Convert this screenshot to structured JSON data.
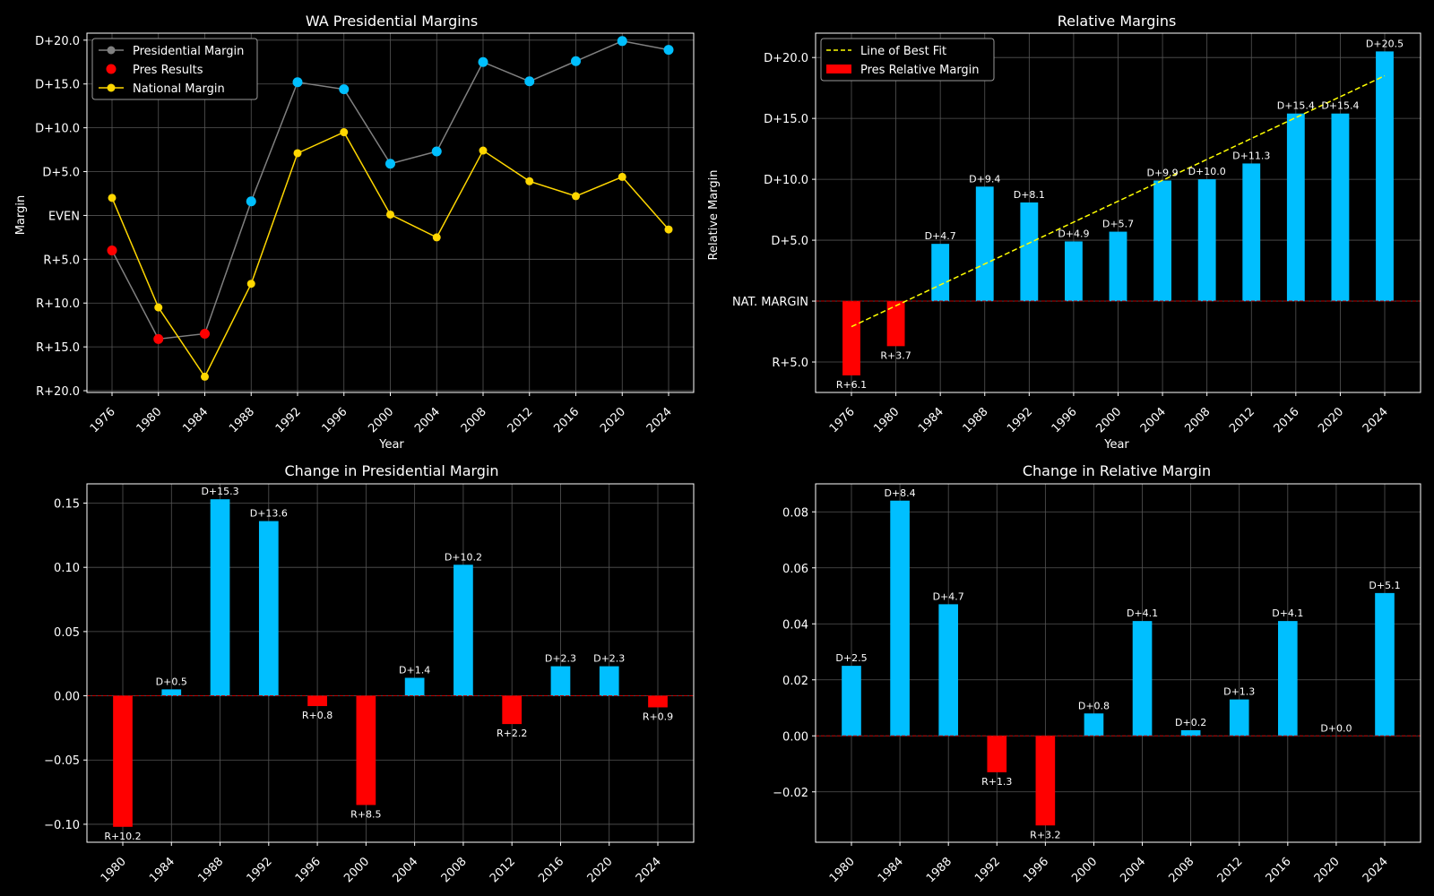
{
  "colors": {
    "background": "#000000",
    "axis": "#ffffff",
    "grid": "#555555",
    "dem": "#00bfff",
    "rep": "#ff0000",
    "line_pres": "#808080",
    "line_nat": "#ffd700",
    "fit": "#ffff00",
    "zero_line": "#c00000"
  },
  "chart_data": [
    {
      "id": "wa-presidential-margins",
      "type": "line",
      "title": "WA Presidential Margins",
      "xlabel": "Year",
      "ylabel": "Margin",
      "x": [
        1976,
        1980,
        1984,
        1988,
        1992,
        1996,
        2000,
        2004,
        2008,
        2012,
        2016,
        2020,
        2024
      ],
      "ylim": [
        -20.2,
        20.8
      ],
      "yticks": [
        {
          "value": 20,
          "label": "D+20.0"
        },
        {
          "value": 15,
          "label": "D+15.0"
        },
        {
          "value": 10,
          "label": "D+10.0"
        },
        {
          "value": 5,
          "label": "D+5.0"
        },
        {
          "value": 0,
          "label": "EVEN"
        },
        {
          "value": -5,
          "label": "R+5.0"
        },
        {
          "value": -10,
          "label": "R+10.0"
        },
        {
          "value": -15,
          "label": "R+15.0"
        },
        {
          "value": -20,
          "label": "R+20.0"
        }
      ],
      "grid": true,
      "legend_position": "top-left",
      "series": [
        {
          "name": "Presidential Margin",
          "values": [
            -4,
            -14.1,
            -13.5,
            1.6,
            15.2,
            14.4,
            5.9,
            7.3,
            17.5,
            15.3,
            17.6,
            19.9,
            18.9
          ]
        },
        {
          "name": "Pres Results",
          "values": [
            -4,
            -14.1,
            -13.5,
            1.6,
            15.2,
            14.4,
            5.9,
            7.3,
            17.5,
            15.3,
            17.6,
            19.9,
            18.9
          ]
        },
        {
          "name": "National Margin",
          "values": [
            2,
            -10.5,
            -18.4,
            -7.8,
            7.1,
            9.5,
            0.1,
            -2.5,
            7.4,
            3.9,
            2.2,
            4.4,
            -1.6
          ]
        }
      ]
    },
    {
      "id": "relative-margins",
      "type": "bar",
      "title": "Relative Margins",
      "xlabel": "Year",
      "ylabel": "Relative Margin",
      "categories": [
        "1976",
        "1980",
        "1984",
        "1988",
        "1992",
        "1996",
        "2000",
        "2004",
        "2008",
        "2012",
        "2016",
        "2020",
        "2024"
      ],
      "values": [
        -6.1,
        -3.7,
        4.7,
        9.4,
        8.1,
        4.9,
        5.7,
        9.9,
        10.0,
        11.3,
        15.4,
        15.4,
        20.5
      ],
      "data_labels": [
        "R+6.1",
        "R+3.7",
        "D+4.7",
        "D+9.4",
        "D+8.1",
        "D+4.9",
        "D+5.7",
        "D+9.9",
        "D+10.0",
        "D+11.3",
        "D+15.4",
        "D+15.4",
        "D+20.5"
      ],
      "ylim": [
        -7.5,
        22
      ],
      "yticks": [
        {
          "value": 20,
          "label": "D+20.0"
        },
        {
          "value": 15,
          "label": "D+15.0"
        },
        {
          "value": 10,
          "label": "D+10.0"
        },
        {
          "value": 5,
          "label": "D+5.0"
        },
        {
          "value": 0,
          "label": "NAT. MARGIN"
        },
        {
          "value": -5,
          "label": "R+5.0"
        }
      ],
      "grid": true,
      "legend_position": "top-left",
      "series": [
        {
          "name": "Line of Best Fit",
          "start": -2.1,
          "end": 18.5
        },
        {
          "name": "Pres Relative Margin"
        }
      ]
    },
    {
      "id": "change-presidential-margin",
      "type": "bar",
      "title": "Change in Presidential Margin",
      "categories": [
        "1980",
        "1984",
        "1988",
        "1992",
        "1996",
        "2000",
        "2004",
        "2008",
        "2012",
        "2016",
        "2020",
        "2024"
      ],
      "values": [
        -0.102,
        0.005,
        0.153,
        0.136,
        -0.008,
        -0.085,
        0.014,
        0.102,
        -0.022,
        0.023,
        0.023,
        -0.009
      ],
      "data_labels": [
        "R+10.2",
        "D+0.5",
        "D+15.3",
        "D+13.6",
        "R+0.8",
        "R+8.5",
        "D+1.4",
        "D+10.2",
        "R+2.2",
        "D+2.3",
        "D+2.3",
        "R+0.9"
      ],
      "ylim": [
        -0.114,
        0.165
      ],
      "yticks": [
        {
          "value": 0.15,
          "label": "0.15"
        },
        {
          "value": 0.1,
          "label": "0.10"
        },
        {
          "value": 0.05,
          "label": "0.05"
        },
        {
          "value": 0,
          "label": "0.00"
        },
        {
          "value": -0.05,
          "label": "−0.05"
        },
        {
          "value": -0.1,
          "label": "−0.10"
        }
      ],
      "grid": true
    },
    {
      "id": "change-relative-margin",
      "type": "bar",
      "title": "Change in Relative Margin",
      "categories": [
        "1980",
        "1984",
        "1988",
        "1992",
        "1996",
        "2000",
        "2004",
        "2008",
        "2012",
        "2016",
        "2020",
        "2024"
      ],
      "values": [
        0.025,
        0.084,
        0.047,
        -0.013,
        -0.032,
        0.008,
        0.041,
        0.002,
        0.013,
        0.041,
        0.0,
        0.051
      ],
      "data_labels": [
        "D+2.5",
        "D+8.4",
        "D+4.7",
        "R+1.3",
        "R+3.2",
        "D+0.8",
        "D+4.1",
        "D+0.2",
        "D+1.3",
        "D+4.1",
        "D+0.0",
        "D+5.1"
      ],
      "ylim": [
        -0.038,
        0.09
      ],
      "yticks": [
        {
          "value": 0.08,
          "label": "0.08"
        },
        {
          "value": 0.06,
          "label": "0.06"
        },
        {
          "value": 0.04,
          "label": "0.04"
        },
        {
          "value": 0.02,
          "label": "0.02"
        },
        {
          "value": 0,
          "label": "0.00"
        },
        {
          "value": -0.02,
          "label": "−0.02"
        }
      ],
      "grid": true
    }
  ]
}
